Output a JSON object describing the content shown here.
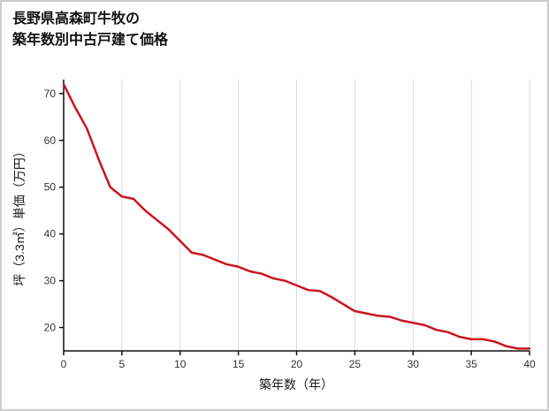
{
  "page": {
    "background": "#ffffff",
    "border_color": "#cccccc"
  },
  "chart_data": {
    "type": "line",
    "title": "長野県高森町牛牧の築年数別中古戸建て価格",
    "title_lines": [
      "長野県高森町牛牧の",
      "築年数別中古戸建て価格"
    ],
    "xlabel": "築年数（年）",
    "ylabel": "坪（3.3㎡）単価（万円）",
    "x": [
      0,
      1,
      2,
      3,
      4,
      5,
      6,
      7,
      8,
      9,
      10,
      11,
      12,
      13,
      14,
      15,
      16,
      17,
      18,
      19,
      20,
      21,
      22,
      23,
      24,
      25,
      26,
      27,
      28,
      29,
      30,
      31,
      32,
      33,
      34,
      35,
      36,
      37,
      38,
      39,
      40
    ],
    "values": [
      72,
      67,
      62.5,
      56,
      50,
      48,
      47.5,
      45,
      43,
      41,
      38.5,
      36,
      35.5,
      34.5,
      33.5,
      33,
      32,
      31.5,
      30.5,
      30,
      29,
      28,
      27.8,
      26.5,
      25,
      23.5,
      23,
      22.5,
      22.3,
      21.5,
      21,
      20.5,
      19.5,
      19,
      18,
      17.5,
      17.5,
      17,
      16,
      15.5,
      15.5
    ],
    "xlim": [
      0,
      40
    ],
    "ylim": [
      15,
      73
    ],
    "xticks": [
      0,
      5,
      10,
      15,
      20,
      25,
      30,
      35,
      40
    ],
    "yticks": [
      20,
      30,
      40,
      50,
      60,
      70
    ],
    "grid": "vertical-only",
    "legend": "none",
    "line_color": "#c9151e",
    "axis_color": "#111111",
    "grid_color": "#d9d9d9",
    "tick_label_color": "#333333",
    "axis_label_color": "#1a1a1a"
  }
}
